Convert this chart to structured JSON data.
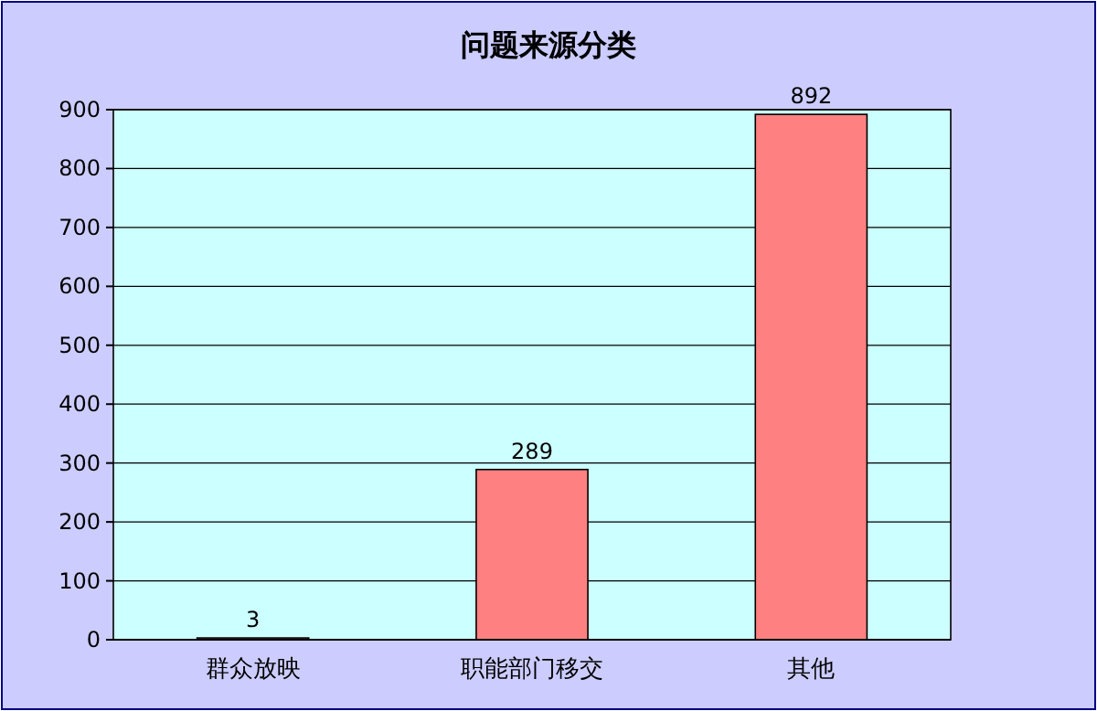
{
  "chart_data": {
    "type": "bar",
    "title": "问题来源分类",
    "categories": [
      "群众放映",
      "职能部门移交",
      "其他"
    ],
    "values": [
      3,
      289,
      892
    ],
    "color": "#ff8080",
    "ylim": [
      0,
      900
    ],
    "yticks": [
      0,
      100,
      200,
      300,
      400,
      500,
      600,
      700,
      800,
      900
    ],
    "grid": "y",
    "data_labels": true
  }
}
